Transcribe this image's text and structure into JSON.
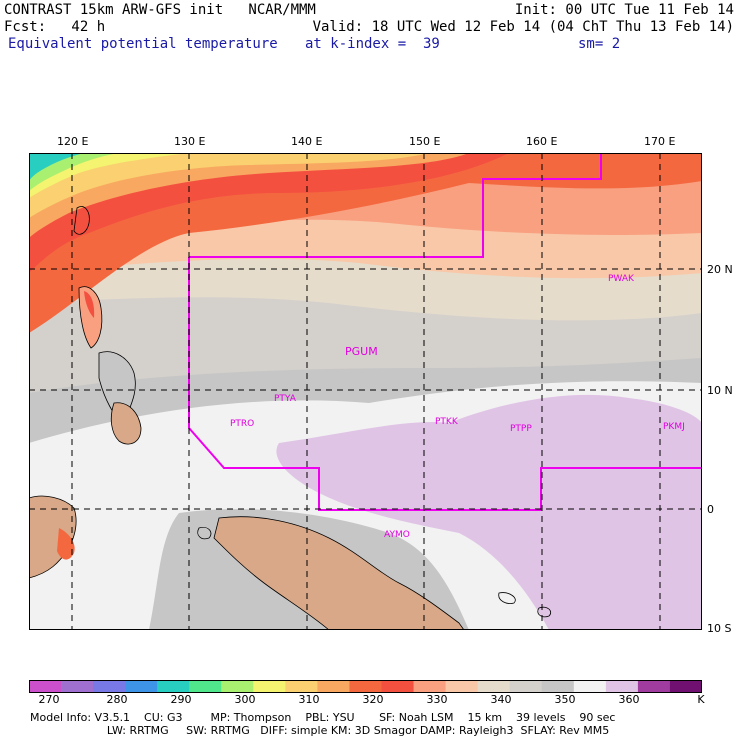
{
  "header": {
    "line1_left": "CONTRAST 15km ARW-GFS init   NCAR/MMM",
    "line1_right": "Init: 00 UTC Tue 11 Feb 14",
    "line2_left": "Fcst:   42 h",
    "line2_right": "Valid: 18 UTC Wed 12 Feb 14 (04 ChT Thu 13 Feb 14)",
    "line3_left": "Equivalent potential temperature",
    "line3_mid": "at k-index =  39",
    "line3_right": "sm= 2"
  },
  "map": {
    "lon_labels": [
      "120 E",
      "130 E",
      "140 E",
      "150 E",
      "160 E",
      "170 E"
    ],
    "lat_labels": [
      "20 N",
      "10 N",
      "0",
      "10 S"
    ],
    "stations": [
      {
        "id": "PWAK",
        "label": "PWAK"
      },
      {
        "id": "PGUM",
        "label": "PGUM"
      },
      {
        "id": "PTYA",
        "label": "PTYA"
      },
      {
        "id": "PTRO",
        "label": "PTRO"
      },
      {
        "id": "PTKK",
        "label": "PTKK"
      },
      {
        "id": "PTPP",
        "label": "PTPP"
      },
      {
        "id": "PKMJ",
        "label": "PKMJ"
      },
      {
        "id": "AYMO",
        "label": "AYMO"
      }
    ],
    "palette": {
      "land": "#d8a888",
      "boundary": "#ee00ee",
      "grid": "#000000"
    }
  },
  "colorbar": {
    "unit": "K",
    "labels": [
      "270",
      "280",
      "290",
      "300",
      "310",
      "320",
      "330",
      "340",
      "350",
      "360"
    ],
    "colors": [
      "#cc4fcc",
      "#a070d0",
      "#7878e6",
      "#3e94e6",
      "#28cfc0",
      "#50e68c",
      "#aaf070",
      "#f4f470",
      "#fad070",
      "#f8a860",
      "#f46840",
      "#f45040",
      "#f8a080",
      "#f8c8a8",
      "#e6dccc",
      "#d4d0cc",
      "#c6c6c6",
      "#f2f2f2",
      "#e0c4e6",
      "#a03ca0",
      "#701070"
    ]
  },
  "footer": {
    "line1": "Model Info: V3.5.1    CU: G3        MP: Thompson    PBL: YSU       SF: Noah LSM    15 km    39 levels    90 sec",
    "line2": "                      LW: RRTMG     SW: RRTMG   DIFF: simple KM: 3D Smagor DAMP: Rayleigh3  SFLAY: Rev MM5"
  }
}
